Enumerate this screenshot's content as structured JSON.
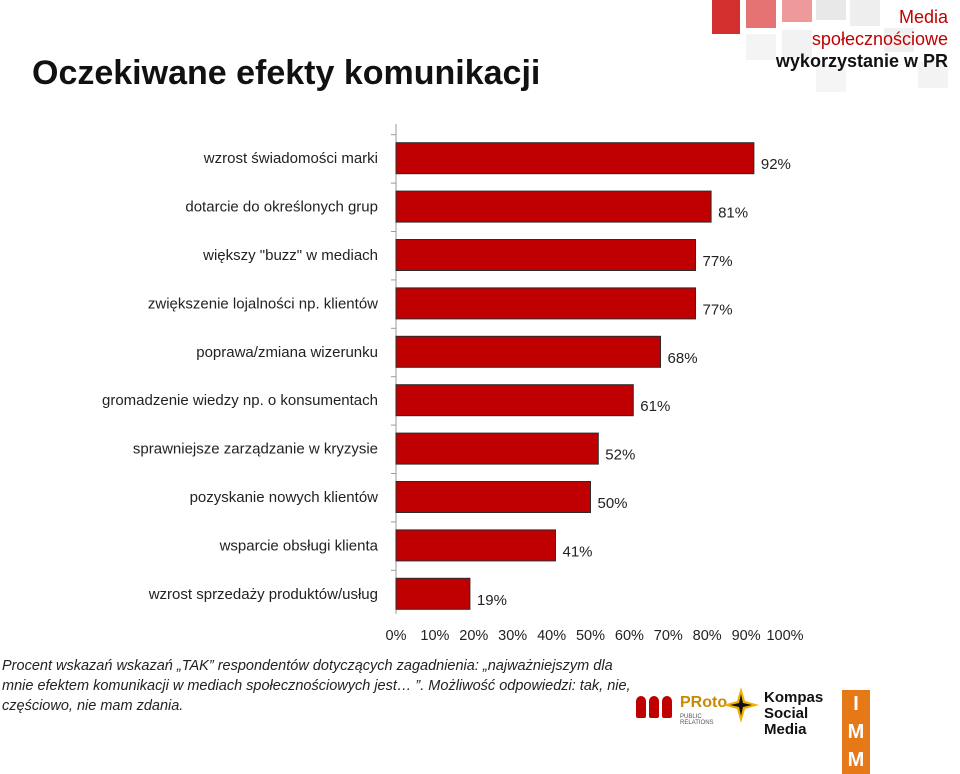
{
  "header": {
    "title": "Oczekiwane efekty komunikacji",
    "brand_line1": "Media",
    "brand_line2": "społecznościowe",
    "brand_line3": "wykorzystanie w PR"
  },
  "colors": {
    "bar": "#c00000",
    "bar_border": "#2b2b2b",
    "accent": "#c00000",
    "logo_orange": "#e77817"
  },
  "chart_data": {
    "type": "bar",
    "orientation": "horizontal",
    "categories": [
      "wzrost świadomości marki",
      "dotarcie do określonych grup",
      "większy \"buzz\" w mediach",
      "zwiększenie lojalności np. klientów",
      "poprawa/zmiana wizerunku",
      "gromadzenie wiedzy np. o konsumentach",
      "sprawniejsze zarządzanie  w kryzysie",
      "pozyskanie nowych klientów",
      "wsparcie obsługi klienta",
      "wzrost sprzedaży produktów/usług"
    ],
    "values": [
      92,
      81,
      77,
      77,
      68,
      61,
      52,
      50,
      41,
      19
    ],
    "value_labels": [
      "92%",
      "81%",
      "77%",
      "77%",
      "68%",
      "61%",
      "52%",
      "50%",
      "41%",
      "19%"
    ],
    "xlim": [
      0,
      100
    ],
    "xticks": [
      "0%",
      "10%",
      "20%",
      "30%",
      "40%",
      "50%",
      "60%",
      "70%",
      "80%",
      "90%",
      "100%"
    ],
    "grid": false
  },
  "caption": "Procent wskazań wskazań „TAK” respondentów dotyczących zagadnienia: „najważniejszym dla mnie efektem komunikacji w mediach społecznościowych jest… ”. Możliwość odpowiedzi: tak, nie, częściowo, nie mam zdania.",
  "logos": {
    "proto_text": "PRoto",
    "proto_sub": "PUBLIC RELATIONS",
    "kompas_line1": "Kompas",
    "kompas_line2": "Social Media",
    "imm_letters": [
      "I",
      "M",
      "M"
    ]
  }
}
